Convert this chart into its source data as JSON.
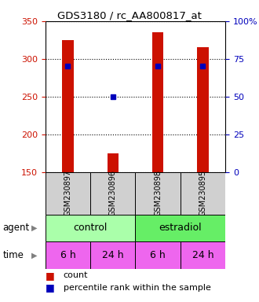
{
  "title": "GDS3180 / rc_AA800817_at",
  "samples": [
    "GSM230897",
    "GSM230896",
    "GSM230898",
    "GSM230895"
  ],
  "count_values": [
    325,
    175,
    335,
    315
  ],
  "percentile_values": [
    70,
    50,
    70,
    70
  ],
  "ylim_left": [
    150,
    350
  ],
  "ylim_right": [
    0,
    100
  ],
  "yticks_left": [
    150,
    200,
    250,
    300,
    350
  ],
  "yticks_right": [
    0,
    25,
    50,
    75,
    100
  ],
  "time_labels": [
    "6 h",
    "24 h",
    "6 h",
    "24 h"
  ],
  "control_color": "#AAFFAA",
  "estradiol_color": "#66EE66",
  "time_color": "#EE66EE",
  "bar_color": "#CC1100",
  "dot_color": "#0000BB",
  "left_axis_color": "#CC1100",
  "right_axis_color": "#0000BB",
  "sample_box_color": "#D0D0D0",
  "bar_width": 0.25,
  "figsize": [
    3.3,
    3.84
  ],
  "dpi": 100
}
